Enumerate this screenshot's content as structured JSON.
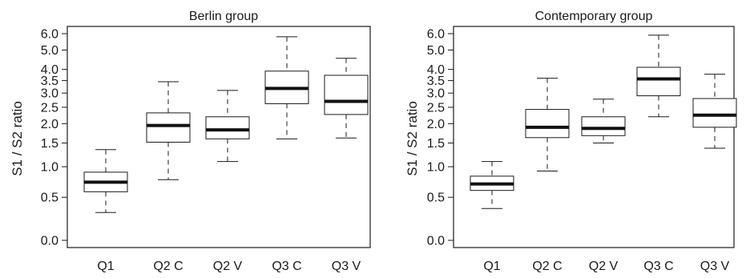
{
  "chart_data": [
    {
      "type": "box",
      "title": "Berlin group",
      "xlabel": "",
      "ylabel": "S1 / S2 ratio",
      "categories": [
        "Q1",
        "Q2 C",
        "Q2 V",
        "Q3 C",
        "Q3 V"
      ],
      "y_ticks": [
        "0.0",
        "0.5",
        "1.0",
        "1.5",
        "2.0",
        "2.5",
        "3.0",
        "3.5",
        "4.0",
        "5.0",
        "6.0"
      ],
      "y_scale": "log(1+y)",
      "grid": false,
      "boxes": [
        {
          "label": "Q1",
          "min": 0.3,
          "q1": 0.58,
          "median": 0.73,
          "q3": 0.9,
          "max": 1.35
        },
        {
          "label": "Q2 C",
          "min": 0.77,
          "q1": 1.52,
          "median": 1.95,
          "q3": 2.32,
          "max": 3.45
        },
        {
          "label": "Q2 V",
          "min": 1.1,
          "q1": 1.6,
          "median": 1.83,
          "q3": 2.2,
          "max": 3.1
        },
        {
          "label": "Q3 C",
          "min": 1.6,
          "q1": 2.62,
          "median": 3.18,
          "q3": 3.92,
          "max": 5.8
        },
        {
          "label": "Q3 V",
          "min": 1.62,
          "q1": 2.27,
          "median": 2.7,
          "q3": 3.73,
          "max": 4.55
        }
      ]
    },
    {
      "type": "box",
      "title": "Contemporary group",
      "xlabel": "",
      "ylabel": "S1 / S2 ratio",
      "categories": [
        "Q1",
        "Q2 C",
        "Q2 V",
        "Q3 C",
        "Q3 V"
      ],
      "y_ticks": [
        "0.0",
        "0.5",
        "1.0",
        "1.5",
        "2.0",
        "2.5",
        "3.0",
        "3.5",
        "4.0",
        "5.0",
        "6.0"
      ],
      "y_scale": "log(1+y)",
      "grid": false,
      "boxes": [
        {
          "label": "Q1",
          "min": 0.35,
          "q1": 0.6,
          "median": 0.7,
          "q3": 0.83,
          "max": 1.1
        },
        {
          "label": "Q2 C",
          "min": 0.92,
          "q1": 1.63,
          "median": 1.9,
          "q3": 2.43,
          "max": 3.6
        },
        {
          "label": "Q2 V",
          "min": 1.5,
          "q1": 1.68,
          "median": 1.87,
          "q3": 2.2,
          "max": 2.78
        },
        {
          "label": "Q3 C",
          "min": 2.2,
          "q1": 2.9,
          "median": 3.57,
          "q3": 4.1,
          "max": 5.9
        },
        {
          "label": "Q3 V",
          "min": 1.38,
          "q1": 1.9,
          "median": 2.25,
          "q3": 2.8,
          "max": 3.78
        }
      ]
    }
  ]
}
